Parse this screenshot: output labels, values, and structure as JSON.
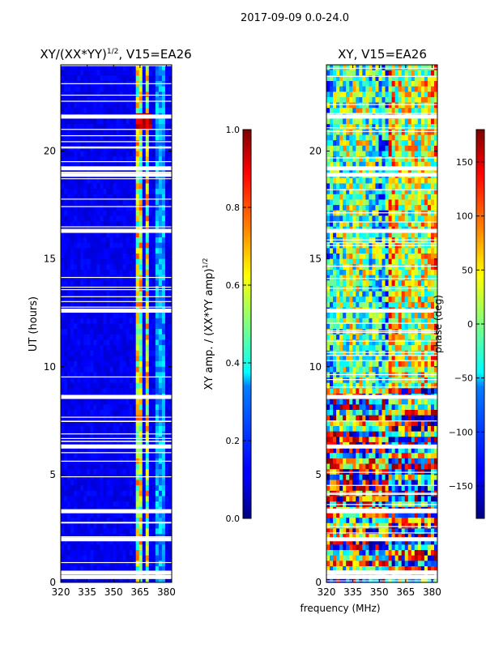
{
  "figure_title": "2017-09-09 0.0-24.0",
  "shared_xlabel": "frequency (MHz)",
  "chart_data": [
    {
      "type": "heatmap",
      "title": "XY/(XX*YY)^1/2, V15=EA26",
      "title_parts": {
        "base": "XY/(XX*YY)",
        "sup": "1/2",
        "tail": ", V15=EA26"
      },
      "xlabel": "",
      "ylabel": "UT (hours)",
      "xlim": [
        320,
        383
      ],
      "ylim": [
        0,
        24
      ],
      "xticks": [
        320,
        335,
        350,
        365,
        380
      ],
      "yticks": [
        0,
        5,
        10,
        15,
        20
      ],
      "colorbar": {
        "label": "XY amp. / (XX*YY amp)^1/2",
        "label_parts": {
          "base": "XY amp. / (XX*YY amp)",
          "sup": "1/2"
        },
        "range": [
          0.0,
          1.0
        ],
        "ticks": [
          "0.0",
          "0.2",
          "0.4",
          "0.6",
          "0.8",
          "1.0"
        ],
        "colormap": "jet"
      },
      "bright_channels_MHz": [
        [
          363,
          366
        ],
        [
          368,
          370
        ]
      ],
      "flagged_gaps_hours": [
        0.25,
        0.45,
        2.0,
        3.3,
        6.3,
        8.6,
        12.6,
        16.3,
        18.9,
        19.2,
        21.6
      ]
    },
    {
      "type": "heatmap",
      "title": "XY, V15=EA26",
      "xlabel": "frequency (MHz)",
      "ylabel": "",
      "xlim": [
        320,
        383
      ],
      "ylim": [
        0,
        24
      ],
      "xticks": [
        320,
        335,
        350,
        365,
        380
      ],
      "yticks": [
        0,
        5,
        10,
        15,
        20
      ],
      "colorbar": {
        "label": "phase (deg)",
        "range": [
          -180,
          180
        ],
        "ticks": [
          "150",
          "100",
          "50",
          "0",
          "−50",
          "−100",
          "−150"
        ],
        "colormap": "jet"
      },
      "flagged_gaps_hours": [
        0.25,
        0.45,
        2.0,
        3.3,
        6.3,
        8.6,
        12.6,
        16.3,
        18.9,
        19.2,
        21.6
      ]
    }
  ]
}
